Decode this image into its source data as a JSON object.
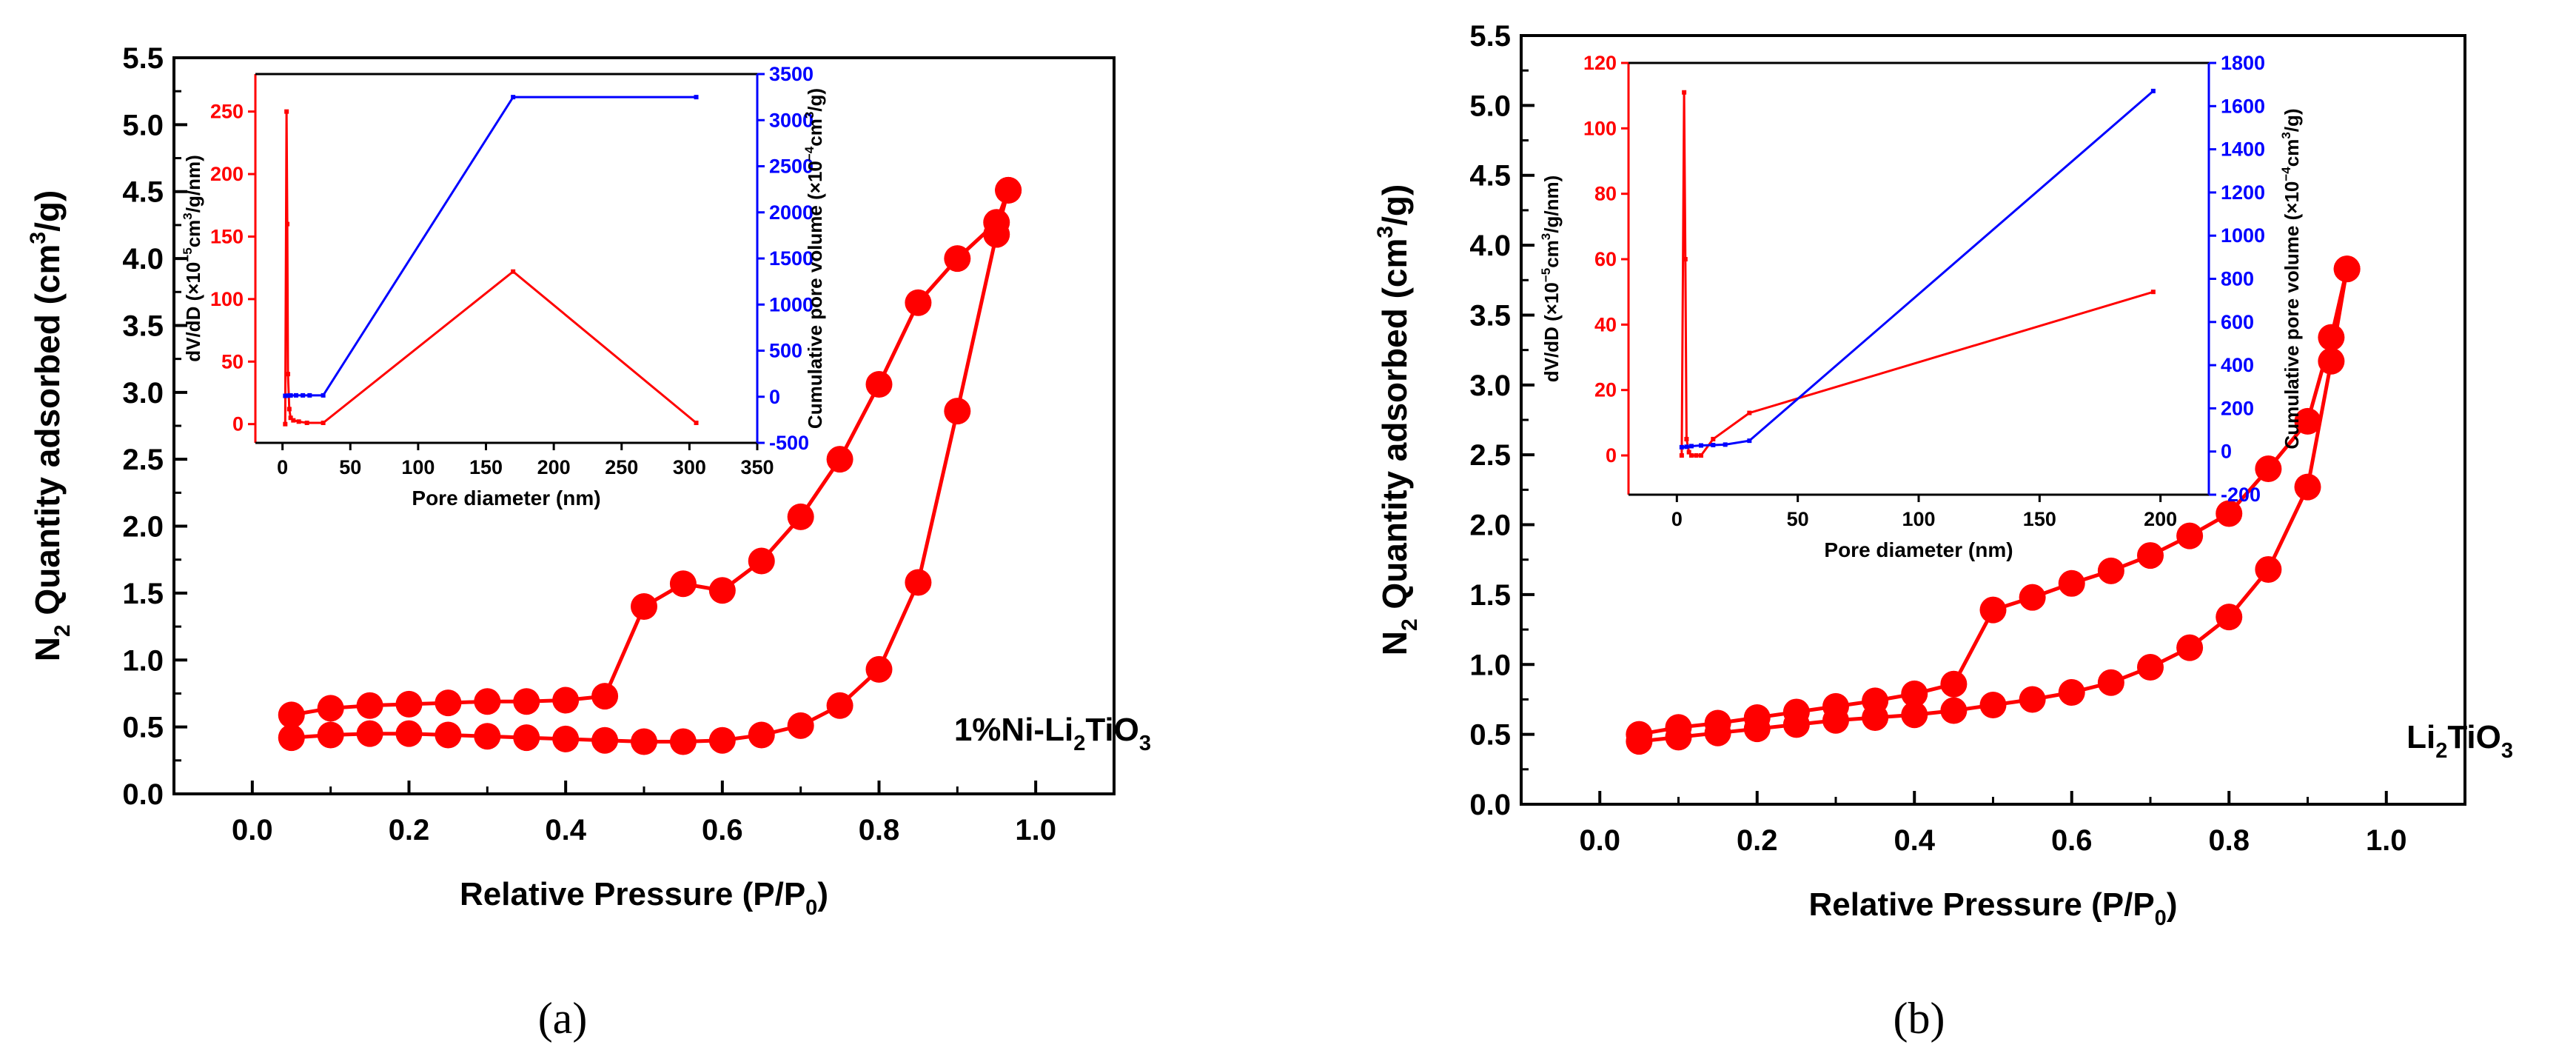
{
  "colors": {
    "iso": "#ff0000",
    "cum": "#0000ff",
    "axis": "#000000"
  },
  "chart_data": [
    {
      "type": "line",
      "panel": "a",
      "caption": "(a)",
      "title": "",
      "sample_label": {
        "prefix": "1%Ni-Li",
        "sub1": "2",
        "mid": "TiO",
        "sub2": "3"
      },
      "xlabel": {
        "main": "Relative Pressure (P/P",
        "sub": "0",
        "end": ")"
      },
      "ylabel": {
        "pre": "N",
        "sub": "2",
        "mid": " Quantity adsorbed (cm",
        "sup": "3",
        "end": "/g)"
      },
      "xlim": [
        -0.1,
        1.1
      ],
      "ylim": [
        0,
        5.5
      ],
      "xticks": [
        0.0,
        0.2,
        0.4,
        0.6,
        0.8,
        1.0
      ],
      "xtick_labels": [
        "0.0",
        "0.2",
        "0.4",
        "0.6",
        "0.8",
        "1.0"
      ],
      "yticks": [
        0,
        0.5,
        1,
        1.5,
        2,
        2.5,
        3,
        3.5,
        4,
        4.5,
        5,
        5.5
      ],
      "ytick_labels": [
        "0.0",
        "0.5",
        "1.0",
        "1.5",
        "2.0",
        "2.5",
        "3.0",
        "3.5",
        "4.0",
        "4.5",
        "5.0",
        "5.5"
      ],
      "series": [
        {
          "name": "adsorption",
          "x": [
            0.05,
            0.1,
            0.15,
            0.2,
            0.25,
            0.3,
            0.35,
            0.4,
            0.45,
            0.5,
            0.55,
            0.6,
            0.65,
            0.7,
            0.75,
            0.8,
            0.85,
            0.9,
            0.95,
            0.965
          ],
          "y": [
            0.42,
            0.44,
            0.45,
            0.45,
            0.44,
            0.43,
            0.42,
            0.41,
            0.4,
            0.39,
            0.39,
            0.4,
            0.44,
            0.51,
            0.66,
            0.93,
            1.58,
            2.86,
            4.18,
            4.51
          ]
        },
        {
          "name": "desorption",
          "x": [
            0.05,
            0.1,
            0.15,
            0.2,
            0.25,
            0.3,
            0.35,
            0.4,
            0.45,
            0.5,
            0.55,
            0.6,
            0.65,
            0.7,
            0.75,
            0.8,
            0.85,
            0.9,
            0.95,
            0.965
          ],
          "y": [
            0.59,
            0.64,
            0.66,
            0.67,
            0.68,
            0.69,
            0.69,
            0.7,
            0.73,
            1.4,
            1.57,
            1.52,
            1.74,
            2.07,
            2.5,
            3.06,
            3.67,
            4.0,
            4.27,
            4.51
          ]
        }
      ],
      "inset": {
        "xlabel": "Pore diameter (nm)",
        "ylabel_left": {
          "pre": "dV/dD (×10",
          "sup1": "−5",
          "mid": "cm",
          "sup2": "3",
          "end": "/g/nm)"
        },
        "ylabel_right": {
          "pre": "Cumulative pore volume (×10",
          "sup1": "−4",
          "mid": "cm",
          "sup2": "3",
          "end": "/g)"
        },
        "xlim": [
          -20,
          350
        ],
        "ylim_left": [
          -15,
          280
        ],
        "ylim_right": [
          -500,
          3500
        ],
        "xticks": [
          0,
          50,
          100,
          150,
          200,
          250,
          300,
          350
        ],
        "xtick_labels": [
          "0",
          "50",
          "100",
          "150",
          "200",
          "250",
          "300",
          "350"
        ],
        "yticks_left": [
          0,
          50,
          100,
          150,
          200,
          250
        ],
        "ytick_labels_left": [
          "0",
          "50",
          "100",
          "150",
          "200",
          "250"
        ],
        "yticks_right": [
          -500,
          0,
          500,
          1000,
          1500,
          2000,
          2500,
          3000,
          3500
        ],
        "ytick_labels_right": [
          "-500",
          "0",
          "500",
          "1000",
          "1500",
          "2000",
          "2500",
          "3000",
          "3500"
        ],
        "dvdd": {
          "x": [
            2,
            3,
            3.5,
            4,
            5,
            6,
            8,
            12,
            18,
            30,
            170,
            305
          ],
          "y": [
            0,
            250,
            160,
            40,
            12,
            5,
            3,
            2,
            1,
            1,
            122,
            1
          ]
        },
        "cumulative": {
          "x": [
            2,
            4,
            6,
            10,
            15,
            20,
            30,
            170,
            305
          ],
          "y": [
            10,
            12,
            14,
            15,
            15,
            15,
            15,
            3250,
            3250
          ]
        }
      }
    },
    {
      "type": "line",
      "panel": "b",
      "caption": "(b)",
      "title": "",
      "sample_label": {
        "prefix": "Li",
        "sub1": "2",
        "mid": "TiO",
        "sub2": "3"
      },
      "xlabel": {
        "main": "Relative Pressure (P/P",
        "sub": "0",
        "end": ")"
      },
      "ylabel": {
        "pre": "N",
        "sub": "2",
        "mid": " Quantity adsorbed (cm",
        "sup": "3",
        "end": "/g)"
      },
      "xlim": [
        -0.1,
        1.1
      ],
      "ylim": [
        0,
        5.5
      ],
      "xticks": [
        0.0,
        0.2,
        0.4,
        0.6,
        0.8,
        1.0
      ],
      "xtick_labels": [
        "0.0",
        "0.2",
        "0.4",
        "0.6",
        "0.8",
        "1.0"
      ],
      "yticks": [
        0,
        0.5,
        1,
        1.5,
        2,
        2.5,
        3,
        3.5,
        4,
        4.5,
        5,
        5.5
      ],
      "ytick_labels": [
        "0.0",
        "0.5",
        "1.0",
        "1.5",
        "2.0",
        "2.5",
        "3.0",
        "3.5",
        "4.0",
        "4.5",
        "5.0",
        "5.5"
      ],
      "series": [
        {
          "name": "adsorption",
          "x": [
            0.05,
            0.1,
            0.15,
            0.2,
            0.25,
            0.3,
            0.35,
            0.4,
            0.45,
            0.5,
            0.55,
            0.6,
            0.65,
            0.7,
            0.75,
            0.8,
            0.85,
            0.9,
            0.93,
            0.95
          ],
          "y": [
            0.45,
            0.48,
            0.51,
            0.54,
            0.57,
            0.6,
            0.62,
            0.64,
            0.67,
            0.71,
            0.75,
            0.8,
            0.87,
            0.98,
            1.12,
            1.34,
            1.68,
            2.27,
            3.17,
            3.83
          ]
        },
        {
          "name": "desorption",
          "x": [
            0.05,
            0.1,
            0.15,
            0.2,
            0.25,
            0.3,
            0.35,
            0.4,
            0.45,
            0.5,
            0.55,
            0.6,
            0.65,
            0.7,
            0.75,
            0.8,
            0.85,
            0.9,
            0.93,
            0.95
          ],
          "y": [
            0.5,
            0.55,
            0.58,
            0.62,
            0.66,
            0.7,
            0.74,
            0.79,
            0.86,
            1.39,
            1.48,
            1.58,
            1.67,
            1.78,
            1.92,
            2.08,
            2.4,
            2.74,
            3.34,
            3.83
          ]
        }
      ],
      "inset": {
        "xlabel": "Pore diameter (nm)",
        "ylabel_left": {
          "pre": "dV/dD (×10",
          "sup1": "−5",
          "mid": "cm",
          "sup2": "3",
          "end": "/g/nm)"
        },
        "ylabel_right": {
          "pre": "Cumulative pore volume (×10",
          "sup1": "−4",
          "mid": "cm",
          "sup2": "3",
          "end": "/g)"
        },
        "xlim": [
          -20,
          220
        ],
        "ylim_left": [
          -12,
          120
        ],
        "ylim_right": [
          -200,
          1800
        ],
        "xticks": [
          0,
          50,
          100,
          150,
          200
        ],
        "xtick_labels": [
          "0",
          "50",
          "100",
          "150",
          "200"
        ],
        "yticks_left": [
          0,
          20,
          40,
          60,
          80,
          100,
          120
        ],
        "ytick_labels_left": [
          "0",
          "20",
          "40",
          "60",
          "80",
          "100",
          "120"
        ],
        "yticks_right": [
          -200,
          0,
          200,
          400,
          600,
          800,
          1000,
          1200,
          1400,
          1600,
          1800
        ],
        "ytick_labels_right": [
          "-200",
          "0",
          "200",
          "400",
          "600",
          "800",
          "1000",
          "1200",
          "1400",
          "1600",
          "1800"
        ],
        "dvdd": {
          "x": [
            2,
            3,
            3.5,
            4,
            5,
            6,
            8,
            10,
            15,
            30,
            197
          ],
          "y": [
            0,
            111,
            60,
            5,
            1,
            0,
            0,
            0,
            5,
            13,
            50
          ]
        },
        "cumulative": {
          "x": [
            2,
            4,
            6,
            10,
            15,
            20,
            30,
            197
          ],
          "y": [
            20,
            22,
            25,
            28,
            30,
            32,
            50,
            1670
          ]
        }
      }
    }
  ]
}
